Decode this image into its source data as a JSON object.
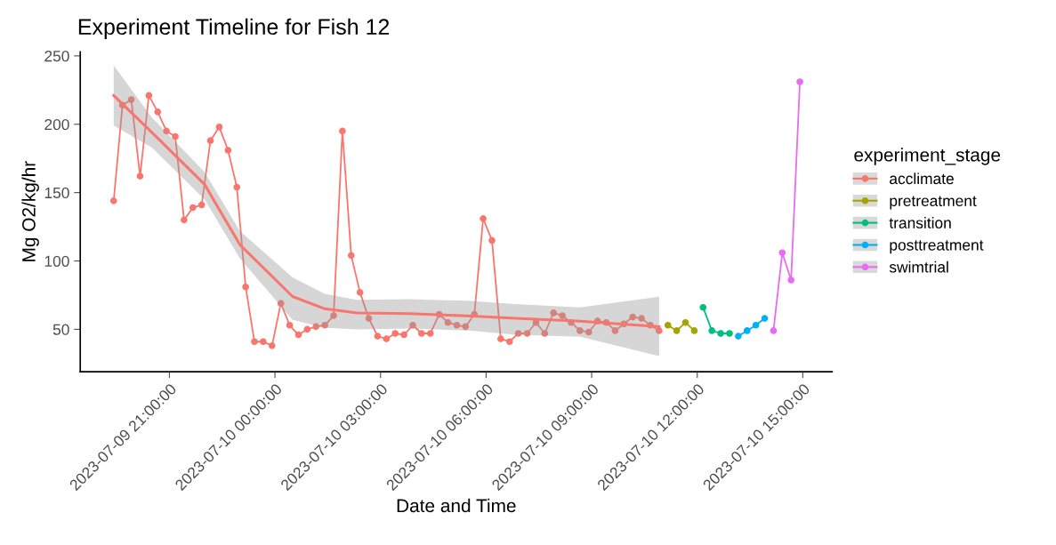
{
  "chart_data": {
    "type": "line",
    "title": "Experiment Timeline for Fish 12",
    "xlabel": "Date and Time",
    "ylabel": "Mg O2/kg/hr",
    "legend_title": "experiment_stage",
    "legend": "right",
    "grid": false,
    "marker": "circle",
    "line_style": "solid",
    "xlim": [
      "2023-07-09T18:28",
      "2023-07-10T15:50"
    ],
    "ylim": [
      19,
      253
    ],
    "yticks": [
      50,
      100,
      150,
      200,
      250
    ],
    "xticks": [
      {
        "value": "2023-07-09T21:00",
        "label": "2023-07-09 21:00:00"
      },
      {
        "value": "2023-07-10T00:00",
        "label": "2023-07-10 00:00:00"
      },
      {
        "value": "2023-07-10T03:00",
        "label": "2023-07-10 03:00:00"
      },
      {
        "value": "2023-07-10T06:00",
        "label": "2023-07-10 06:00:00"
      },
      {
        "value": "2023-07-10T09:00",
        "label": "2023-07-10 09:00:00"
      },
      {
        "value": "2023-07-10T12:00",
        "label": "2023-07-10 12:00:00"
      },
      {
        "value": "2023-07-10T15:00",
        "label": "2023-07-10 15:00:00"
      }
    ],
    "series": [
      {
        "name": "acclimate",
        "color": "#f8766d",
        "x": [
          "2023-07-09T19:25",
          "2023-07-09T19:40",
          "2023-07-09T19:55",
          "2023-07-09T20:10",
          "2023-07-09T20:25",
          "2023-07-09T20:40",
          "2023-07-09T20:55",
          "2023-07-09T21:10",
          "2023-07-09T21:25",
          "2023-07-09T21:40",
          "2023-07-09T21:55",
          "2023-07-09T22:10",
          "2023-07-09T22:25",
          "2023-07-09T22:40",
          "2023-07-09T22:55",
          "2023-07-09T23:10",
          "2023-07-09T23:25",
          "2023-07-09T23:40",
          "2023-07-09T23:55",
          "2023-07-10T00:10",
          "2023-07-10T00:25",
          "2023-07-10T00:40",
          "2023-07-10T00:55",
          "2023-07-10T01:10",
          "2023-07-10T01:25",
          "2023-07-10T01:40",
          "2023-07-10T01:55",
          "2023-07-10T02:10",
          "2023-07-10T02:25",
          "2023-07-10T02:40",
          "2023-07-10T02:55",
          "2023-07-10T03:10",
          "2023-07-10T03:25",
          "2023-07-10T03:40",
          "2023-07-10T03:55",
          "2023-07-10T04:10",
          "2023-07-10T04:25",
          "2023-07-10T04:40",
          "2023-07-10T04:55",
          "2023-07-10T05:10",
          "2023-07-10T05:25",
          "2023-07-10T05:40",
          "2023-07-10T05:55",
          "2023-07-10T06:10",
          "2023-07-10T06:25",
          "2023-07-10T06:40",
          "2023-07-10T06:55",
          "2023-07-10T07:10",
          "2023-07-10T07:25",
          "2023-07-10T07:40",
          "2023-07-10T07:55",
          "2023-07-10T08:10",
          "2023-07-10T08:25",
          "2023-07-10T08:40",
          "2023-07-10T08:55",
          "2023-07-10T09:10",
          "2023-07-10T09:25",
          "2023-07-10T09:40",
          "2023-07-10T09:55",
          "2023-07-10T10:10",
          "2023-07-10T10:25",
          "2023-07-10T10:40",
          "2023-07-10T10:55"
        ],
        "values": [
          144,
          214,
          218,
          162,
          221,
          209,
          195,
          191,
          130,
          139,
          141,
          188,
          198,
          181,
          154,
          81,
          41,
          41,
          38,
          69,
          53,
          46,
          50,
          52,
          53,
          60,
          195,
          104,
          77,
          58,
          45,
          43,
          47,
          46,
          53,
          47,
          47,
          61,
          55,
          53,
          52,
          61,
          131,
          115,
          43,
          41,
          47,
          47,
          55,
          47,
          62,
          60,
          55,
          49,
          48,
          56,
          55,
          49,
          54,
          59,
          58,
          53,
          49
        ]
      },
      {
        "name": "pretreatment",
        "color": "#a3a500",
        "x": [
          "2023-07-10T11:10",
          "2023-07-10T11:25",
          "2023-07-10T11:40",
          "2023-07-10T11:55"
        ],
        "values": [
          53,
          49,
          55,
          49
        ]
      },
      {
        "name": "transition",
        "color": "#00bf7d",
        "x": [
          "2023-07-10T12:10",
          "2023-07-10T12:25",
          "2023-07-10T12:40",
          "2023-07-10T12:55"
        ],
        "values": [
          66,
          49,
          47,
          47
        ]
      },
      {
        "name": "posttreatment",
        "color": "#00b0f6",
        "x": [
          "2023-07-10T13:10",
          "2023-07-10T13:25",
          "2023-07-10T13:40",
          "2023-07-10T13:55"
        ],
        "values": [
          45,
          49,
          53,
          58
        ]
      },
      {
        "name": "swimtrial",
        "color": "#e76bf3",
        "x": [
          "2023-07-10T14:10",
          "2023-07-10T14:25",
          "2023-07-10T14:40",
          "2023-07-10T14:55"
        ],
        "values": [
          49,
          106,
          86,
          231
        ]
      },
      {
        "type": "line",
        "color": "#f8766d",
        "marker": "none",
        "x": [
          "2023-07-09T19:25",
          "2023-07-09T20:30",
          "2023-07-09T22:00",
          "2023-07-09T23:00",
          "2023-07-10T00:30",
          "2023-07-10T01:25",
          "2023-07-10T02:20",
          "2023-07-10T03:50",
          "2023-07-10T05:35",
          "2023-07-10T06:50",
          "2023-07-10T08:40",
          "2023-07-10T10:55"
        ],
        "values": [
          221,
          194,
          156,
          112,
          74,
          65,
          62,
          61.5,
          59.7,
          58,
          56,
          52
        ],
        "lower": [
          199,
          183,
          145,
          102,
          57,
          51,
          50,
          50.6,
          48.9,
          46,
          44.6,
          30.5
        ],
        "upper": [
          243,
          205,
          165,
          122,
          88,
          76,
          71.6,
          72,
          70.8,
          68.4,
          66,
          73.8
        ]
      }
    ]
  }
}
